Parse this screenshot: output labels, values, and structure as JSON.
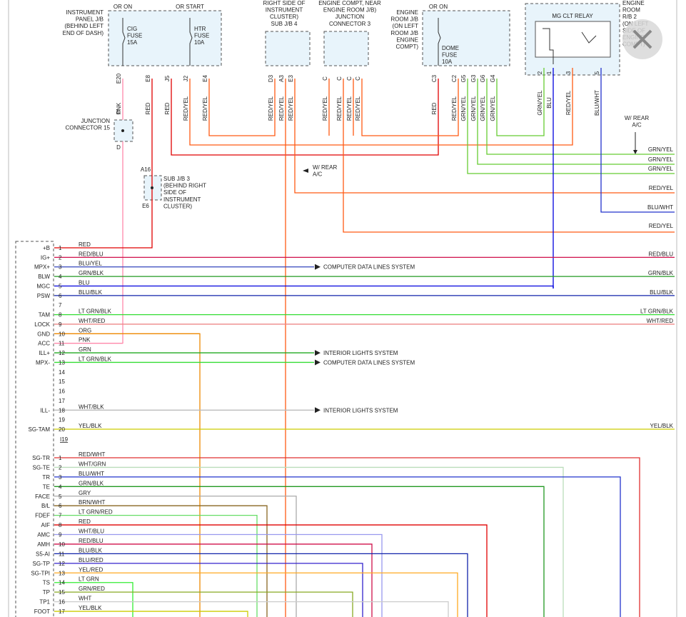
{
  "labels": [
    {
      "lines": [
        "INSTRUMENT",
        "PANEL J/B",
        "(BEHIND LEFT",
        "END OF DASH)"
      ]
    },
    {
      "lines": [
        "OR ON"
      ]
    },
    {
      "lines": [
        "OR START"
      ]
    },
    {
      "lines": [
        "CIG",
        "FUSE",
        "15A"
      ]
    },
    {
      "lines": [
        "HTR",
        "FUSE",
        "10A"
      ]
    },
    {
      "lines": [
        "RIGHT SIDE OF",
        "INSTRUMENT",
        "CLUSTER)",
        "SUB J/B 4"
      ]
    },
    {
      "lines": [
        "ENGINE COMPT, NEAR",
        "ENGINE ROOM J/B)",
        "JUNCTION",
        "CONNECTOR 3"
      ]
    },
    {
      "lines": [
        "ENGINE",
        "ROOM J/B",
        "(ON LEFT",
        "ROOM J/B",
        "ENGINE",
        "COMPT)"
      ]
    },
    {
      "lines": [
        "OR ON"
      ]
    },
    {
      "lines": [
        "DOME",
        "FUSE",
        "10A"
      ]
    },
    {
      "lines": [
        "MG CLT RELAY"
      ]
    },
    {
      "lines": [
        "ENGINE",
        "ROOM",
        "R/B 2",
        "(ON LEFT",
        "SIDE OF",
        "ENGINE",
        "COMPT)"
      ]
    },
    {
      "lines": [
        "JUNCTION",
        "CONNECTOR 15"
      ]
    },
    {
      "lines": [
        "D"
      ]
    },
    {
      "lines": [
        "D"
      ]
    },
    {
      "lines": [
        "A16"
      ]
    },
    {
      "lines": [
        "SUB J/B 3",
        "(BEHIND RIGHT",
        "SIDE OF",
        "INSTRUMENT",
        "CLUSTER)"
      ]
    },
    {
      "lines": [
        "E6"
      ]
    },
    {
      "lines": [
        "W/ REAR",
        "A/C"
      ]
    },
    {
      "lines": [
        "W/ REAR",
        "A/C"
      ]
    }
  ],
  "pins": [
    {
      "pin": "E20",
      "wire": "PNK"
    },
    {
      "pin": "E8",
      "wire": "RED"
    },
    {
      "pin": "J5",
      "wire": "RED"
    },
    {
      "pin": "J2",
      "wire": "RED/YEL"
    },
    {
      "pin": "E4",
      "wire": "RED/YEL"
    },
    {
      "pin": "D3",
      "wire": "RED/YEL"
    },
    {
      "pin": "A3",
      "wire": "RED/YEL"
    },
    {
      "pin": "E3",
      "wire": "RED/YEL"
    },
    {
      "pin": "C",
      "wire": "RED/YEL"
    },
    {
      "pin": "C",
      "wire": "RED/YEL"
    },
    {
      "pin": "C",
      "wire": "RED/YEL"
    },
    {
      "pin": "C",
      "wire": "RED/YEL"
    },
    {
      "pin": "C3",
      "wire": "RED"
    },
    {
      "pin": "C2",
      "wire": "RED/YEL"
    },
    {
      "pin": "G5",
      "wire": "GRN/YEL"
    },
    {
      "pin": "G3",
      "wire": "GRN/YEL"
    },
    {
      "pin": "G6",
      "wire": "GRN/YEL"
    },
    {
      "pin": "G4",
      "wire": "GRN/YEL"
    },
    {
      "pin": "2",
      "wire": "GRN/YEL"
    },
    {
      "pin": "1",
      "wire": "BLU"
    },
    {
      "pin": "3",
      "wire": "RED/YEL"
    },
    {
      "pin": "5",
      "wire": "BLU/WHT"
    }
  ],
  "right_labels": [
    "GRN/YEL",
    "GRN/YEL",
    "GRN/YEL",
    "RED/YEL",
    "BLU/WHT",
    "RED/YEL"
  ],
  "connector_a": {
    "name": "I19",
    "rows": [
      {
        "terminal": "+B",
        "pin": "1",
        "wire": "RED",
        "color": "#e00000",
        "end_label": null
      },
      {
        "terminal": "IG+",
        "pin": "2",
        "wire": "RED/BLU",
        "color": "#d0104a",
        "end_label": "RED/BLU"
      },
      {
        "terminal": "MPX+",
        "pin": "3",
        "wire": "BLU/YEL",
        "color": "#3344bb",
        "end_label": "COMPUTER DATA LINES SYSTEM"
      },
      {
        "terminal": "BLW",
        "pin": "4",
        "wire": "GRN/BLK",
        "color": "#229922",
        "end_label": "GRN/BLK"
      },
      {
        "terminal": "MGC",
        "pin": "5",
        "wire": "BLU",
        "color": "#0000dd",
        "end_label": null
      },
      {
        "terminal": "PSW",
        "pin": "6",
        "wire": "BLU/BLK",
        "color": "#1122aa",
        "end_label": "BLU/BLK"
      },
      {
        "terminal": null,
        "pin": "7",
        "wire": null,
        "color": "#999999",
        "end_label": null
      },
      {
        "terminal": "TAM",
        "pin": "8",
        "wire": "LT GRN/BLK",
        "color": "#33dd33",
        "end_label": "LT GRN/BLK"
      },
      {
        "terminal": "LOCK",
        "pin": "9",
        "wire": "WHT/RED",
        "color": "#ee8888",
        "end_label": "WHT/RED"
      },
      {
        "terminal": "GND",
        "pin": "10",
        "wire": "ORG",
        "color": "#ee8800",
        "end_label": null
      },
      {
        "terminal": "ACC",
        "pin": "11",
        "wire": "PNK",
        "color": "#ff88aa",
        "end_label": null
      },
      {
        "terminal": "ILL+",
        "pin": "12",
        "wire": "GRN",
        "color": "#22aa22",
        "end_label": "INTERIOR LIGHTS SYSTEM"
      },
      {
        "terminal": "MPX-",
        "pin": "13",
        "wire": "LT GRN/BLK",
        "color": "#33dd33",
        "end_label": "COMPUTER DATA LINES SYSTEM"
      },
      {
        "terminal": null,
        "pin": "14",
        "wire": null,
        "color": "#999999",
        "end_label": null
      },
      {
        "terminal": null,
        "pin": "15",
        "wire": null,
        "color": "#999999",
        "end_label": null
      },
      {
        "terminal": null,
        "pin": "16",
        "wire": null,
        "color": "#999999",
        "end_label": null
      },
      {
        "terminal": null,
        "pin": "17",
        "wire": null,
        "color": "#999999",
        "end_label": null
      },
      {
        "terminal": "ILL-",
        "pin": "18",
        "wire": "WHT/BLK",
        "color": "#bbbbbb",
        "end_label": "INTERIOR LIGHTS SYSTEM"
      },
      {
        "terminal": null,
        "pin": "19",
        "wire": null,
        "color": "#999999",
        "end_label": null
      },
      {
        "terminal": "SG-TAM",
        "pin": "20",
        "wire": "YEL/BLK",
        "color": "#cccc00",
        "end_label": "YEL/BLK"
      }
    ]
  },
  "connector_b": {
    "rows": [
      {
        "terminal": "SG-TR",
        "pin": "1",
        "wire": "RED/WHT",
        "color": "#e03030"
      },
      {
        "terminal": "SG-TE",
        "pin": "2",
        "wire": "WHT/GRN",
        "color": "#bbddbb"
      },
      {
        "terminal": "TR",
        "pin": "3",
        "wire": "BLU/WHT",
        "color": "#2233cc"
      },
      {
        "terminal": "TE",
        "pin": "4",
        "wire": "GRN/BLK",
        "color": "#229922"
      },
      {
        "terminal": "FACE",
        "pin": "5",
        "wire": "GRY",
        "color": "#aaaaaa"
      },
      {
        "terminal": "B/L",
        "pin": "6",
        "wire": "BRN/WHT",
        "color": "#886622"
      },
      {
        "terminal": "FDEF",
        "pin": "7",
        "wire": "LT GRN/RED",
        "color": "#66dd66"
      },
      {
        "terminal": "AIF",
        "pin": "8",
        "wire": "RED",
        "color": "#e00000"
      },
      {
        "terminal": "AMC",
        "pin": "9",
        "wire": "WHT/BLU",
        "color": "#9999ee"
      },
      {
        "terminal": "AMH",
        "pin": "10",
        "wire": "RED/BLU",
        "color": "#d0104a"
      },
      {
        "terminal": "S5-AI",
        "pin": "11",
        "wire": "BLU/BLK",
        "color": "#1122aa"
      },
      {
        "terminal": "SG-TP",
        "pin": "12",
        "wire": "BLU/RED",
        "color": "#3322cc"
      },
      {
        "terminal": "SG-TPI",
        "pin": "13",
        "wire": "YEL/RED",
        "color": "#ffaa22"
      },
      {
        "terminal": "TS",
        "pin": "14",
        "wire": "LT GRN",
        "color": "#33ee33"
      },
      {
        "terminal": "TP",
        "pin": "15",
        "wire": "GRN/RED",
        "color": "#88aa22"
      },
      {
        "terminal": "TP1",
        "pin": "16",
        "wire": "WHT",
        "color": "#cccccc"
      },
      {
        "terminal": "FOOT",
        "pin": "17",
        "wire": "YEL/BLK",
        "color": "#cccc00"
      }
    ]
  }
}
